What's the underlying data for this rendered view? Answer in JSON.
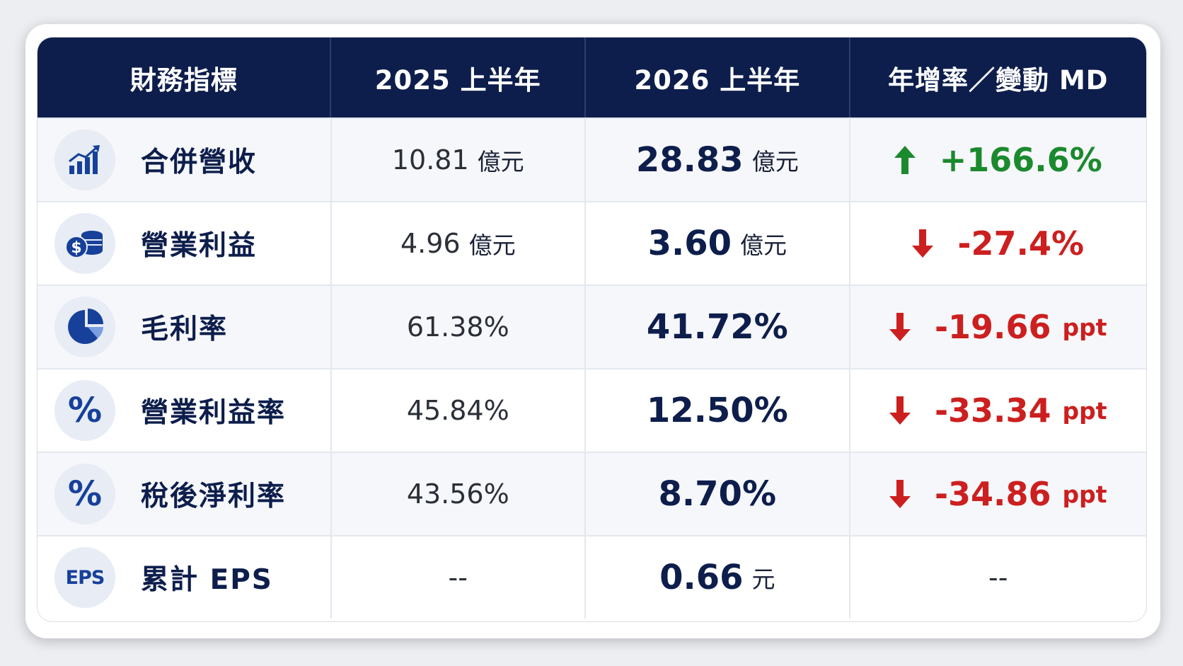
{
  "header": {
    "col_metric": "財務指標",
    "col_2025": "2025 上半年",
    "col_2026": "2026 上半年",
    "col_change": "年增率／變動 MD"
  },
  "rows": [
    {
      "icon": "bar-chart-growth-icon",
      "label": "合併營收",
      "v2025": "10.81",
      "u2025": "億元",
      "v2026": "28.83",
      "u2026": "億元",
      "change": "+166.6%",
      "change_unit": "",
      "direction": "up"
    },
    {
      "icon": "coins-dollar-icon",
      "label": "營業利益",
      "v2025": "4.96",
      "u2025": "億元",
      "v2026": "3.60",
      "u2026": "億元",
      "change": "-27.4%",
      "change_unit": "",
      "direction": "down"
    },
    {
      "icon": "pie-chart-icon",
      "label": "毛利率",
      "v2025": "61.38%",
      "u2025": "",
      "v2026": "41.72%",
      "u2026": "",
      "change": "-19.66",
      "change_unit": "ppt",
      "direction": "down"
    },
    {
      "icon": "percent-icon",
      "icon_text": "%",
      "label": "營業利益率",
      "v2025": "45.84%",
      "u2025": "",
      "v2026": "12.50%",
      "u2026": "",
      "change": "-33.34",
      "change_unit": "ppt",
      "direction": "down"
    },
    {
      "icon": "percent-icon",
      "icon_text": "%",
      "label": "稅後淨利率",
      "v2025": "43.56%",
      "u2025": "",
      "v2026": "8.70%",
      "u2026": "",
      "change": "-34.86",
      "change_unit": "ppt",
      "direction": "down"
    },
    {
      "icon": "eps-icon",
      "icon_text": "EPS",
      "label": "累計 EPS",
      "v2025": "--",
      "u2025": "",
      "v2026": "0.66",
      "u2026": "元",
      "change": "--",
      "change_unit": "",
      "direction": "none"
    }
  ],
  "colors": {
    "header_bg": "#0d1e4c",
    "up": "#1b8a2e",
    "down": "#cc1f1f",
    "icon_blue": "#16409a"
  }
}
